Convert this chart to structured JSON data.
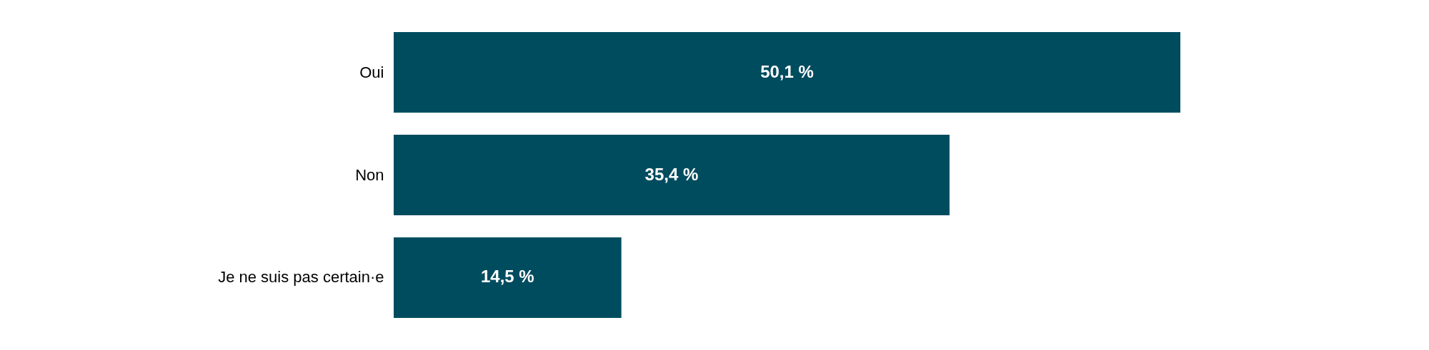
{
  "chart_data": {
    "type": "bar",
    "orientation": "horizontal",
    "categories": [
      "Oui",
      "Non",
      "Je ne suis pas certain·e"
    ],
    "values": [
      50.1,
      35.4,
      14.5
    ],
    "color": "#004c5f",
    "value_labels": [
      "50,1 %",
      "35,4 %",
      "14,5 %"
    ],
    "grid": false
  }
}
